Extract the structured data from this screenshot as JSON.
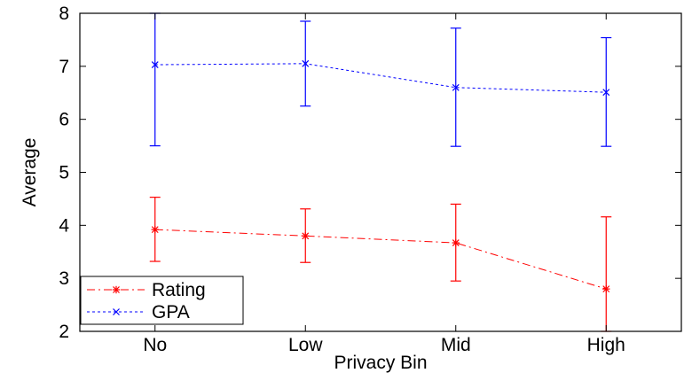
{
  "chart_data": {
    "type": "line",
    "title": "",
    "xlabel": "Privacy Bin",
    "ylabel": "Average",
    "categories": [
      "No",
      "Low",
      "Mid",
      "High"
    ],
    "ylim": [
      2,
      8
    ],
    "yticks": [
      2,
      3,
      4,
      5,
      6,
      7,
      8
    ],
    "grid": false,
    "legend_position": "bottom-left",
    "series": [
      {
        "name": "Rating",
        "color": "#ff0000",
        "marker": "asterisk",
        "line_style": "dash-dot",
        "values": [
          3.92,
          3.8,
          3.67,
          2.8
        ],
        "error_low": [
          3.32,
          3.3,
          2.95,
          2.0
        ],
        "error_high": [
          4.53,
          4.31,
          4.4,
          4.16
        ]
      },
      {
        "name": "GPA",
        "color": "#0000ff",
        "marker": "x",
        "line_style": "dotted",
        "values": [
          7.03,
          7.05,
          6.6,
          6.51
        ],
        "error_low": [
          5.5,
          6.25,
          5.49,
          5.49
        ],
        "error_high": [
          8.0,
          7.85,
          7.72,
          7.54
        ]
      }
    ]
  }
}
